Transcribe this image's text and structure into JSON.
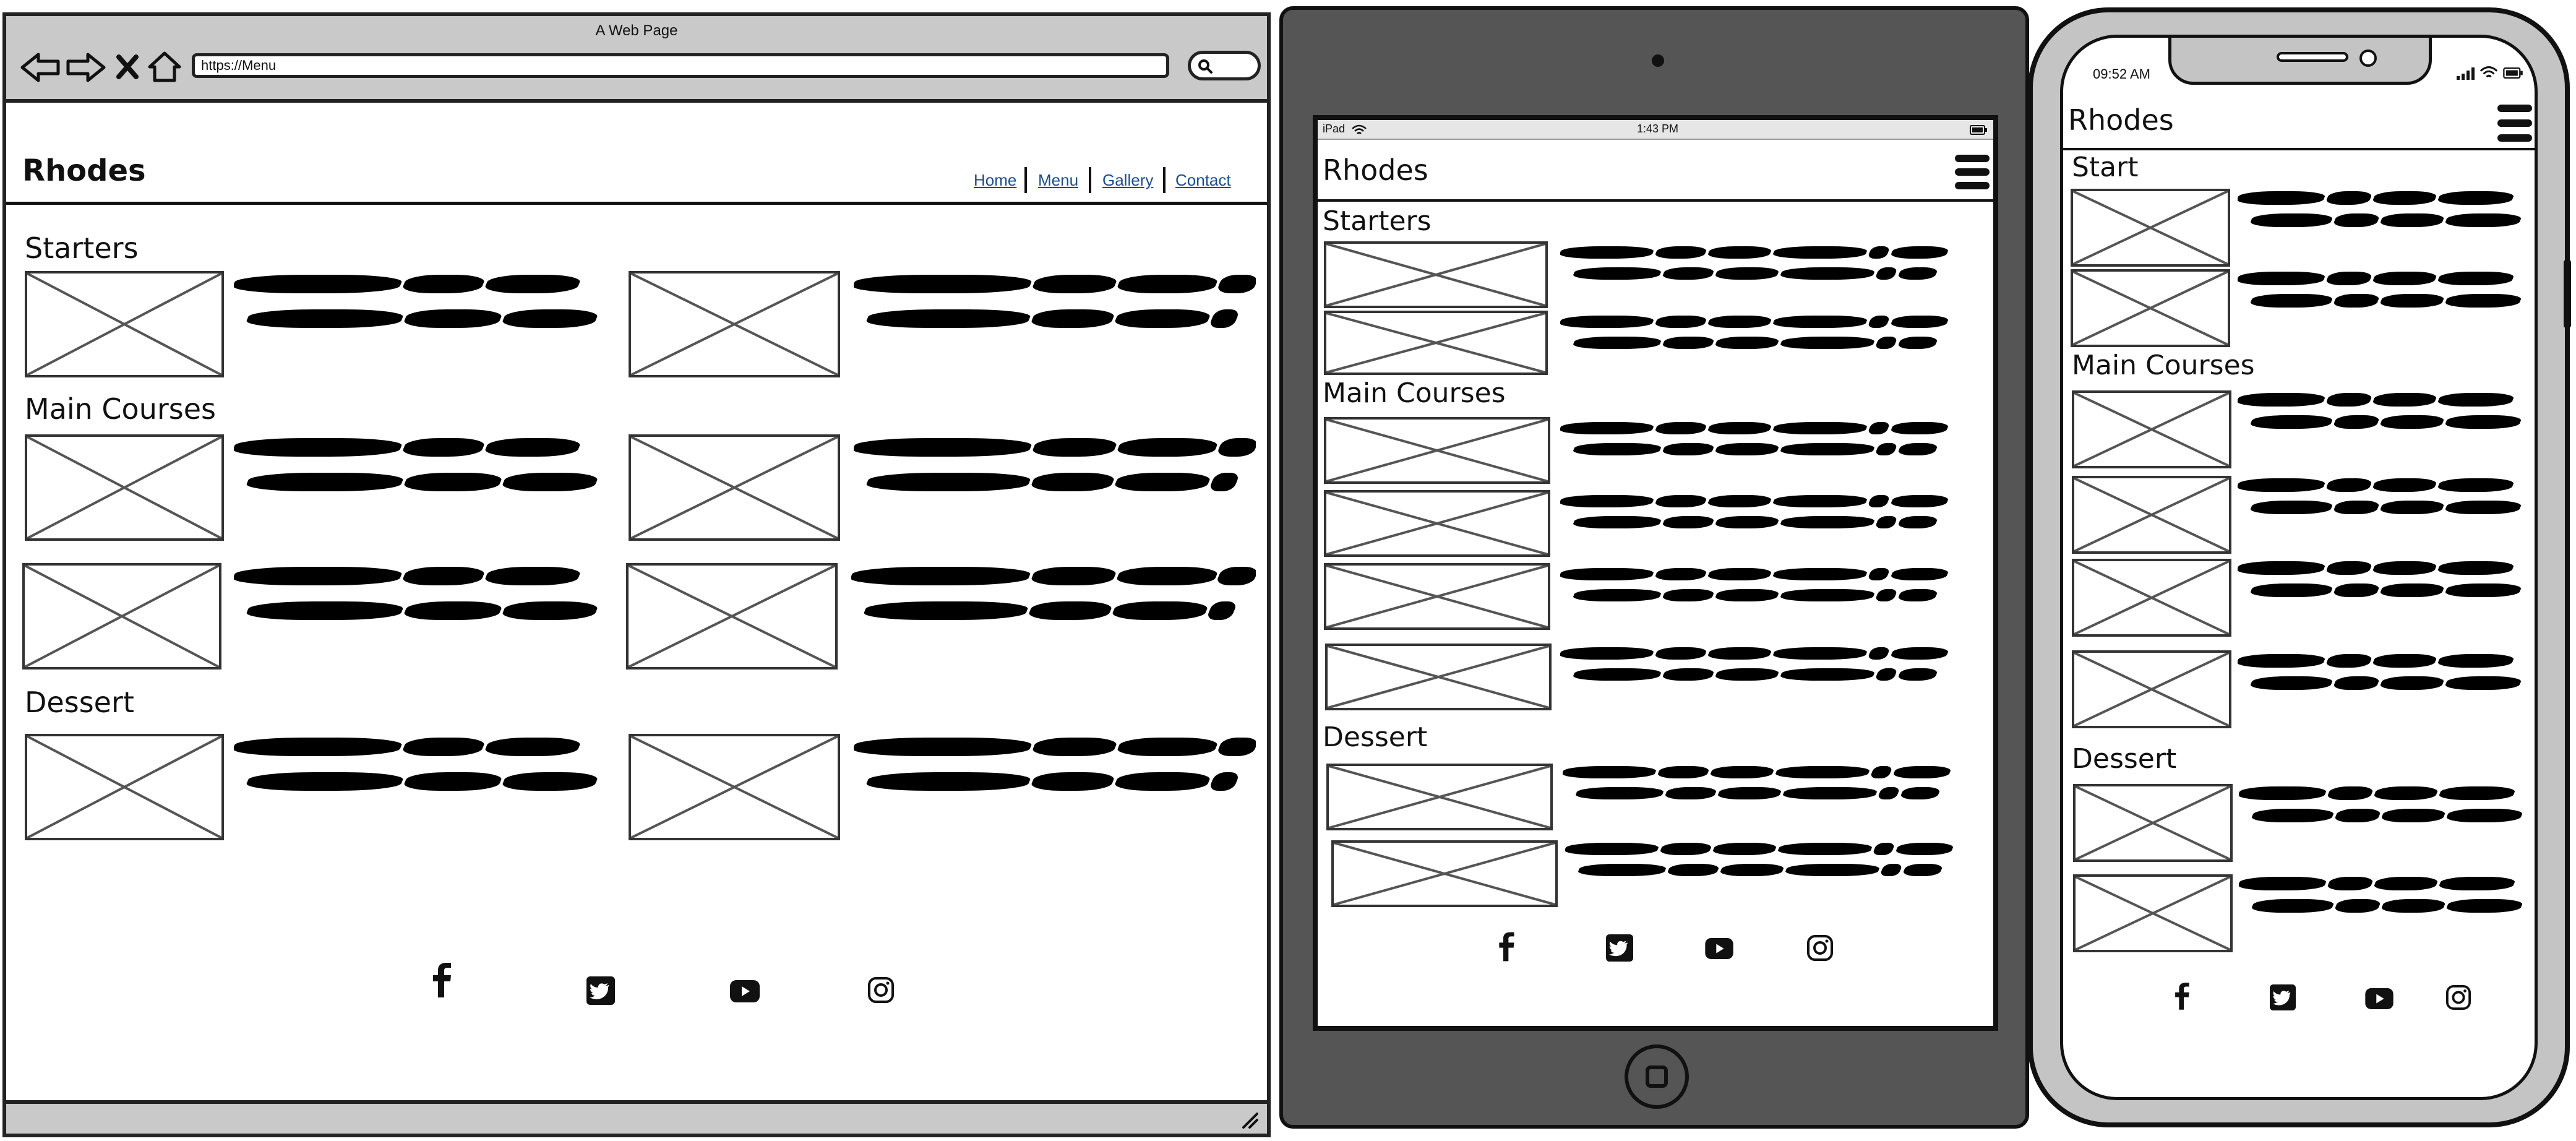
{
  "browser": {
    "title": "A Web Page",
    "url": "https://Menu",
    "brand": "Rhodes",
    "nav": [
      "Home",
      "Menu",
      "Gallery",
      "Contact"
    ],
    "sections": [
      "Starters",
      "Main Courses",
      "Dessert"
    ]
  },
  "tablet": {
    "status_left": "iPad",
    "status_time": "1:43 PM",
    "brand": "Rhodes",
    "sections": [
      "Starters",
      "Main Courses",
      "Dessert"
    ]
  },
  "phone": {
    "status_time": "09:52 AM",
    "brand": "Rhodes",
    "sections": [
      "Start",
      "Main Courses",
      "Dessert"
    ]
  },
  "social_icons": [
    "facebook-icon",
    "twitter-icon",
    "youtube-icon",
    "instagram-icon"
  ],
  "colors": {
    "frame_gray": "#c9c9c9",
    "tablet_body": "#555555",
    "link": "#1a4d8f"
  }
}
